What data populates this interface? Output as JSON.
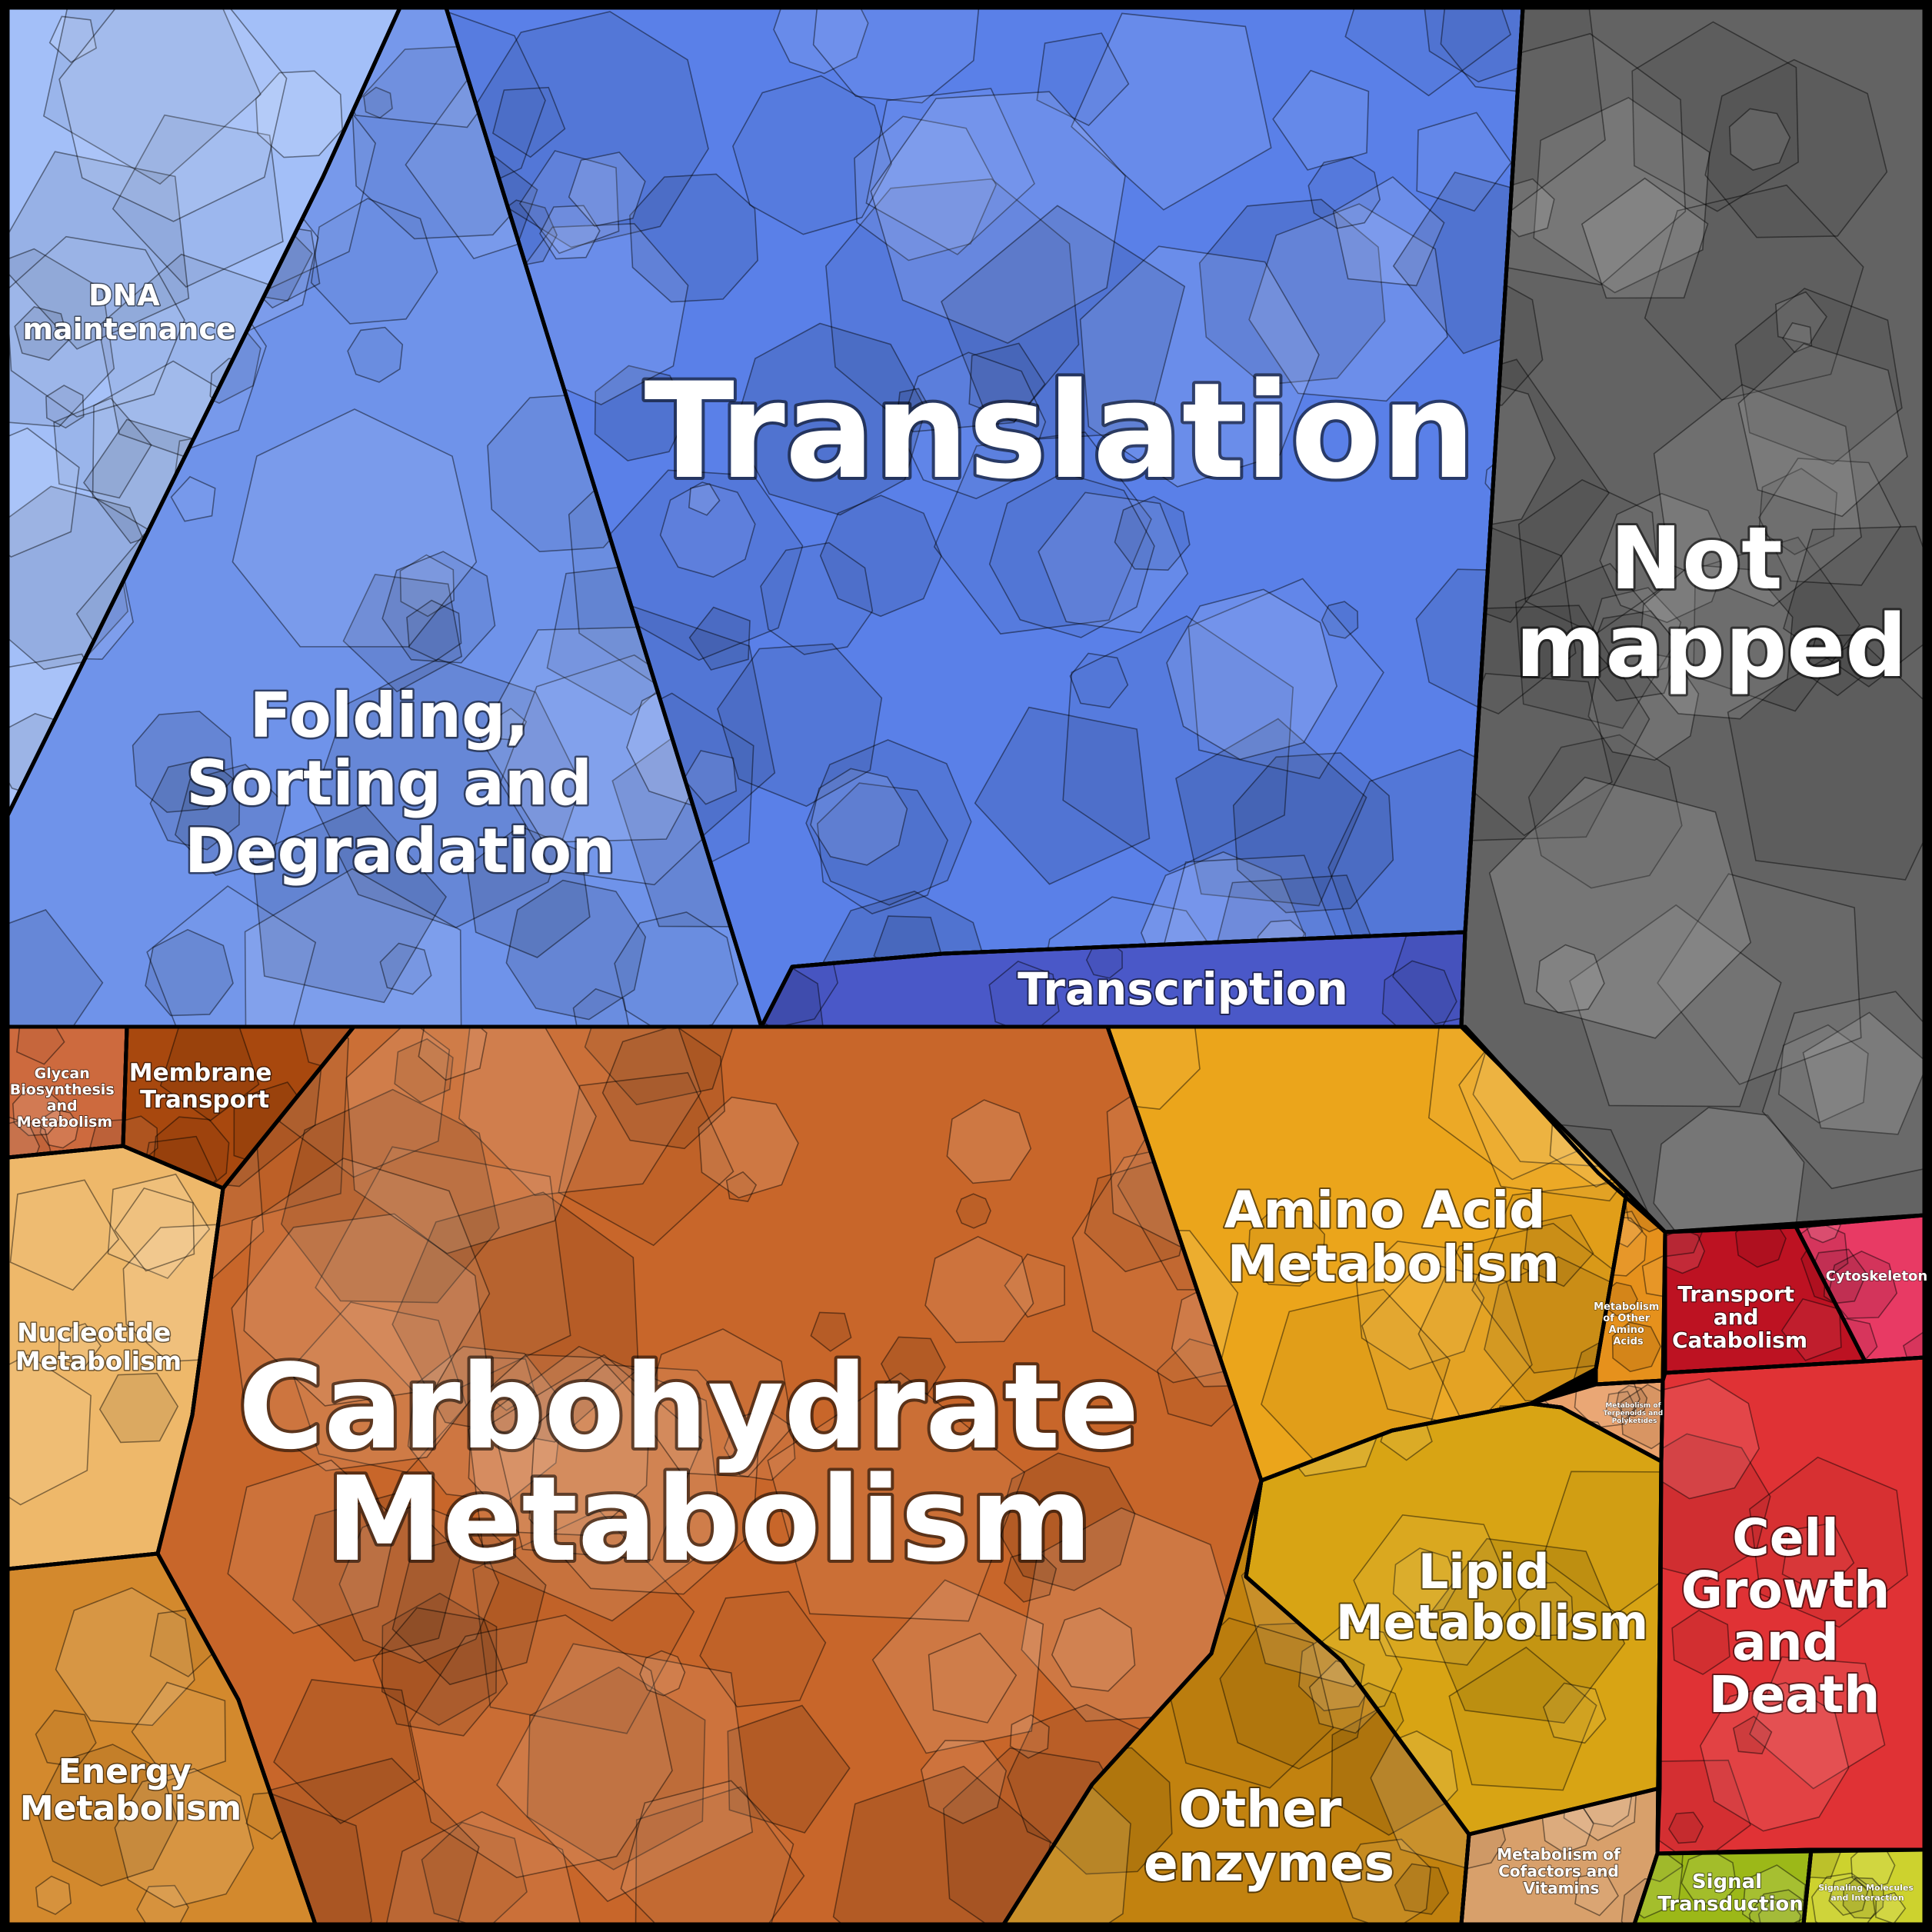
{
  "categories": [
    {
      "id": "dna",
      "label": [
        "DNA",
        "maintenance"
      ],
      "color": "#a3bff8"
    },
    {
      "id": "folding",
      "label": [
        "Folding,",
        "Sorting and",
        "Degradation"
      ],
      "color": "#6f93ea"
    },
    {
      "id": "translation",
      "label": [
        "Translation"
      ],
      "color": "#5a80e8"
    },
    {
      "id": "transcription",
      "label": [
        "Transcription"
      ],
      "color": "#4a58c8"
    },
    {
      "id": "not-mapped",
      "label": [
        "Not",
        "mapped"
      ],
      "color": "#636363"
    },
    {
      "id": "glycan",
      "label": [
        "Glycan",
        "Biosynthesis",
        "and",
        "Metabolism"
      ],
      "color": "#cd6a3e"
    },
    {
      "id": "membrane",
      "label": [
        "Membrane",
        "Transport"
      ],
      "color": "#a8480e"
    },
    {
      "id": "nucleotide",
      "label": [
        "Nucleotide",
        "Metabolism"
      ],
      "color": "#eeb86a"
    },
    {
      "id": "energy",
      "label": [
        "Energy",
        "Metabolism"
      ],
      "color": "#d3892d"
    },
    {
      "id": "carbohydrate",
      "label": [
        "Carbohydrate",
        "Metabolism"
      ],
      "color": "#c8662a"
    },
    {
      "id": "amino-acid",
      "label": [
        "Amino Acid",
        "Metabolism"
      ],
      "color": "#eba51b"
    },
    {
      "id": "other-amino",
      "label": [
        "Metabolism",
        "of Other",
        "Amino",
        "Acids"
      ],
      "color": "#e6911c"
    },
    {
      "id": "terpenoids",
      "label": [
        "Metabolism of",
        "Terpenoids and",
        "Polyketides"
      ],
      "color": "#e9a16b"
    },
    {
      "id": "lipid",
      "label": [
        "Lipid",
        "Metabolism"
      ],
      "color": "#d8a414"
    },
    {
      "id": "other-enzymes",
      "label": [
        "Other",
        "enzymes"
      ],
      "color": "#c2820f"
    },
    {
      "id": "cofactors",
      "label": [
        "Metabolism of",
        "Cofactors and",
        "Vitamins"
      ],
      "color": "#d8a06b"
    },
    {
      "id": "transport-catabolism",
      "label": [
        "Transport",
        "and",
        "Catabolism"
      ],
      "color": "#bd1222"
    },
    {
      "id": "cytoskeleton",
      "label": [
        "Cytoskeleton"
      ],
      "color": "#e83a64"
    },
    {
      "id": "cell-growth",
      "label": [
        "Cell",
        "Growth",
        "and",
        "Death"
      ],
      "color": "#e03235"
    },
    {
      "id": "signal",
      "label": [
        "Signal",
        "Transduction"
      ],
      "color": "#9cb818"
    },
    {
      "id": "signaling-molecules",
      "label": [
        "Signaling Molecules",
        "and Interaction"
      ],
      "color": "#cdd22e"
    }
  ]
}
